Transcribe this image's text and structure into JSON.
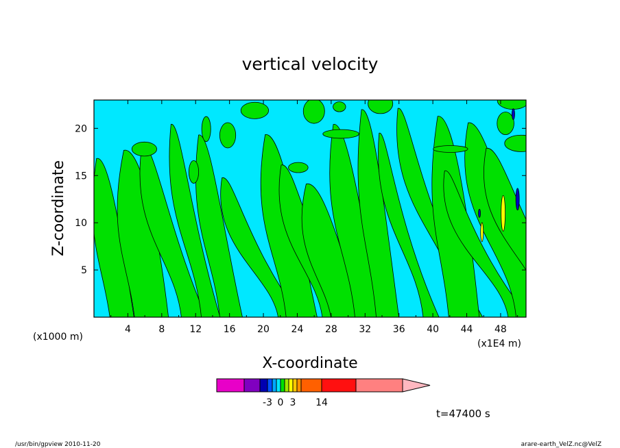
{
  "chart_data": {
    "type": "heatmap",
    "title": "vertical velocity",
    "xlabel": "X-coordinate",
    "ylabel": "Z-coordinate",
    "x_unit_left": "(x1000 m)",
    "x_unit_right": "(x1E4 m)",
    "xlim": [
      0,
      51
    ],
    "ylim": [
      0,
      23
    ],
    "x_ticks": [
      "4",
      "8",
      "12",
      "16",
      "20",
      "24",
      "28",
      "32",
      "36",
      "40",
      "44",
      "48"
    ],
    "y_ticks": [
      "5",
      "10",
      "15",
      "20"
    ],
    "fields": {
      "negative_color": "#00e8ff",
      "positive_color": "#00e000",
      "weak_updraft_color": "#ffff00",
      "strong_color": "#0000c8",
      "contour_color": "#000000"
    },
    "colorbar": {
      "levels": [
        -20,
        -14,
        -8,
        -4,
        -3,
        -2,
        -1,
        0,
        1,
        2,
        3,
        4,
        8,
        14,
        20,
        30
      ],
      "colors": [
        "#e800c8",
        "#8000c0",
        "#0000b0",
        "#0050ff",
        "#00a8ff",
        "#00e8ff",
        "#00e000",
        "#a0e800",
        "#ffff00",
        "#ffc800",
        "#ff9000",
        "#ff6000",
        "#ff1010",
        "#ff8080",
        "#ffb8c0"
      ],
      "labels": [
        "-3",
        "0",
        "3",
        "14"
      ],
      "label_values": [
        -3,
        0,
        3,
        14
      ]
    },
    "time_label": "t=47400 s"
  },
  "footer": {
    "left": "/usr/bin/gpview  2010-11-20",
    "right": "arare-earth_VelZ.nc@VelZ"
  }
}
